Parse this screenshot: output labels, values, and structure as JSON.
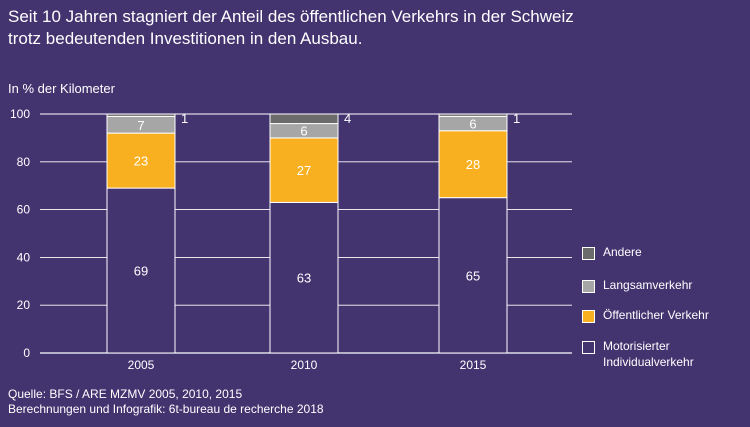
{
  "title_line1": "Seit 10 Jahren stagniert der Anteil des öffentlichen Verkehrs in der Schweiz",
  "title_line2": "trotz bedeutenden Investitionen in den Ausbau.",
  "source_line1": "Quelle: BFS / ARE MZMV 2005, 2010, 2015",
  "source_line2": "Berechnungen und Infografik: 6t-bureau de recherche 2018",
  "colors": {
    "background": "#43336f",
    "gridline": "#ffffff"
  },
  "chart_data": {
    "type": "bar",
    "stacked": true,
    "ylabel": "In % der Kilometer",
    "ylim": [
      0,
      100
    ],
    "yticks": [
      0,
      20,
      40,
      60,
      80,
      100
    ],
    "grid": true,
    "legend_position": "right",
    "categories": [
      "2005",
      "2010",
      "2015"
    ],
    "series": [
      {
        "name": "Motorisierter Individualverkehr",
        "values": [
          69,
          63,
          65
        ],
        "labels": [
          "69",
          "63",
          "65"
        ],
        "color": "#43336f",
        "label_position": "inside"
      },
      {
        "name": "Öffentlicher Verkehr",
        "values": [
          23,
          27,
          28
        ],
        "labels": [
          "23",
          "27",
          "28"
        ],
        "color": "#f9b020",
        "label_position": "inside"
      },
      {
        "name": "Langsamverkehr",
        "values": [
          7,
          6,
          6
        ],
        "labels": [
          "7",
          "6",
          "6"
        ],
        "color": "#a6a6a6",
        "label_position": "inside"
      },
      {
        "name": "Andere",
        "values": [
          1,
          4,
          1
        ],
        "labels": [
          "1",
          "4",
          "1"
        ],
        "color": "#6b6b6b",
        "label_position": "outside"
      }
    ],
    "legend": [
      {
        "name": "Andere",
        "color": "#6b6b6b"
      },
      {
        "name": "Langsamverkehr",
        "color": "#a6a6a6"
      },
      {
        "name": "Öffentlicher Verkehr",
        "color": "#f9b020"
      },
      {
        "name": "Motorisierter\nIndividualverkehr",
        "color": "#43336f"
      }
    ]
  }
}
